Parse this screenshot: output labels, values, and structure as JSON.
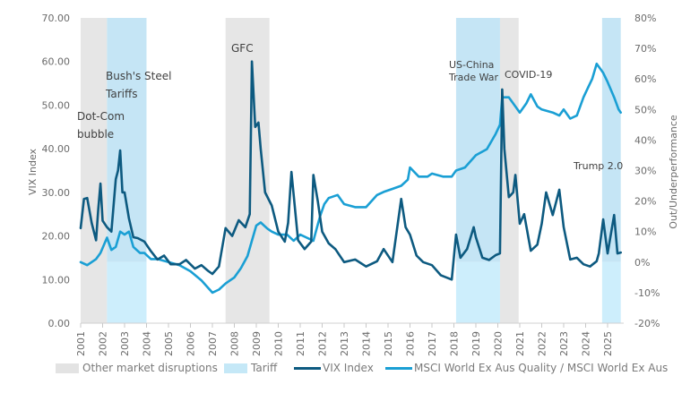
{
  "chart_data": {
    "type": "line",
    "title": "",
    "xlabel": "",
    "ylabel_left": "VIX Index",
    "ylabel_right": "Out/Underperformance",
    "ylim_left": [
      0,
      70
    ],
    "ylim_right": [
      -20,
      80
    ],
    "xlim": [
      2001.0,
      2025.6
    ],
    "left_ticks": [
      "0.00",
      "10.00",
      "20.00",
      "30.00",
      "40.00",
      "50.00",
      "60.00",
      "70.00"
    ],
    "left_tick_values": [
      0,
      10,
      20,
      30,
      40,
      50,
      60,
      70
    ],
    "right_ticks": [
      "-20%",
      "-10%",
      "0%",
      "10%",
      "20%",
      "30%",
      "40%",
      "50%",
      "60%",
      "70%",
      "80%"
    ],
    "right_tick_values": [
      -20,
      -10,
      0,
      10,
      20,
      30,
      40,
      50,
      60,
      70,
      80
    ],
    "x_ticks": [
      "2001",
      "2002",
      "2003",
      "2004",
      "2005",
      "2006",
      "2007",
      "2008",
      "2009",
      "2010",
      "2011",
      "2012",
      "2013",
      "2014",
      "2015",
      "2016",
      "2017",
      "2018",
      "2019",
      "2020",
      "2021",
      "2022",
      "2023",
      "2024",
      "2025"
    ],
    "grid": false,
    "legend_position": "bottom",
    "bands": [
      {
        "type": "other",
        "label": "Dot-Com bubble",
        "start": 2001.0,
        "end": 2002.2
      },
      {
        "type": "tariff",
        "label": "Bush's Steel Tariffs",
        "start": 2002.2,
        "end": 2004.0
      },
      {
        "type": "other",
        "label": "GFC",
        "start": 2007.6,
        "end": 2009.6
      },
      {
        "type": "tariff",
        "label": "US-China Trade War",
        "start": 2018.1,
        "end": 2020.1
      },
      {
        "type": "other",
        "label": "COVID-19",
        "start": 2020.1,
        "end": 2020.95
      },
      {
        "type": "tariff",
        "label": "Trump 2.0",
        "start": 2024.75,
        "end": 2025.6
      }
    ],
    "series": [
      {
        "name": "VIX Index",
        "axis": "left",
        "color": "#0d5a80",
        "x": [
          2001.0,
          2001.15,
          2001.3,
          2001.5,
          2001.7,
          2001.8,
          2001.9,
          2002.0,
          2002.2,
          2002.4,
          2002.6,
          2002.7,
          2002.8,
          2002.9,
          2003.0,
          2003.2,
          2003.4,
          2003.6,
          2003.9,
          2004.2,
          2004.5,
          2004.8,
          2005.1,
          2005.5,
          2005.8,
          2006.2,
          2006.5,
          2006.8,
          2007.0,
          2007.3,
          2007.6,
          2007.9,
          2008.2,
          2008.5,
          2008.7,
          2008.8,
          2008.95,
          2009.1,
          2009.2,
          2009.4,
          2009.7,
          2010.0,
          2010.3,
          2010.45,
          2010.6,
          2010.9,
          2011.2,
          2011.5,
          2011.6,
          2011.8,
          2012.0,
          2012.3,
          2012.6,
          2013.0,
          2013.5,
          2014.0,
          2014.5,
          2014.8,
          2015.2,
          2015.6,
          2015.8,
          2016.0,
          2016.3,
          2016.6,
          2017.0,
          2017.4,
          2017.9,
          2018.1,
          2018.3,
          2018.6,
          2018.9,
          2019.0,
          2019.3,
          2019.6,
          2019.9,
          2020.1,
          2020.2,
          2020.3,
          2020.5,
          2020.7,
          2020.8,
          2021.0,
          2021.2,
          2021.5,
          2021.8,
          2022.0,
          2022.2,
          2022.5,
          2022.8,
          2023.0,
          2023.3,
          2023.6,
          2023.9,
          2024.2,
          2024.5,
          2024.6,
          2024.8,
          2025.0,
          2025.3,
          2025.45,
          2025.6
        ],
        "y": [
          21.8,
          28.5,
          28.7,
          23,
          19,
          26,
          32,
          23.5,
          22,
          21,
          33,
          35,
          39.6,
          30,
          30,
          24,
          19.7,
          19.5,
          18.7,
          16.5,
          14.6,
          15.5,
          13.5,
          13.5,
          14.5,
          12.5,
          13.3,
          12,
          11.3,
          13,
          21.8,
          20,
          23.6,
          22,
          25,
          60,
          45,
          46,
          40,
          30,
          27,
          21,
          18.7,
          23,
          34.7,
          19,
          17,
          18.7,
          34,
          28,
          21,
          18.3,
          17,
          14,
          14.6,
          13,
          14.2,
          17,
          14,
          28.5,
          22,
          20.3,
          15.5,
          14,
          13.3,
          11,
          10,
          20.3,
          15,
          17,
          22,
          19.7,
          15,
          14.5,
          15.6,
          16,
          53.6,
          40,
          28.9,
          30,
          34,
          22.8,
          25,
          16.6,
          18,
          22.8,
          30,
          24.8,
          30.6,
          22,
          14.6,
          15,
          13.5,
          13,
          14.2,
          16,
          23.8,
          16,
          24.8,
          16,
          16.2
        ]
      },
      {
        "name": "MSCI World Ex Aus Quality / MSCI World Ex Aus",
        "axis": "right",
        "color": "#1a9fd4",
        "x": [
          2001.0,
          2001.3,
          2001.7,
          2001.9,
          2002.2,
          2002.4,
          2002.6,
          2002.8,
          2003.0,
          2003.2,
          2003.4,
          2003.7,
          2003.9,
          2004.2,
          2004.5,
          2005.0,
          2005.5,
          2006.0,
          2006.5,
          2007.0,
          2007.3,
          2007.6,
          2008.0,
          2008.3,
          2008.6,
          2008.8,
          2009.0,
          2009.2,
          2009.5,
          2009.7,
          2010.0,
          2010.4,
          2010.7,
          2011.0,
          2011.3,
          2011.6,
          2011.9,
          2012.1,
          2012.3,
          2012.7,
          2013.0,
          2013.5,
          2014.0,
          2014.5,
          2014.8,
          2015.2,
          2015.6,
          2015.9,
          2016.0,
          2016.4,
          2016.8,
          2017.0,
          2017.5,
          2017.9,
          2018.1,
          2018.5,
          2019.0,
          2019.5,
          2019.9,
          2020.1,
          2020.2,
          2020.5,
          2020.8,
          2021.0,
          2021.3,
          2021.5,
          2021.8,
          2022.0,
          2022.5,
          2022.8,
          2023.0,
          2023.3,
          2023.6,
          2023.9,
          2024.1,
          2024.3,
          2024.5,
          2024.7,
          2024.8,
          2025.0,
          2025.3,
          2025.5,
          2025.6
        ],
        "y": [
          0,
          -1,
          1,
          3,
          8,
          4,
          5,
          10,
          9,
          10,
          5,
          3,
          3,
          1,
          1,
          0,
          -1,
          -3,
          -6,
          -10,
          -9,
          -7,
          -5,
          -2,
          2,
          7,
          12,
          13,
          11,
          10,
          9,
          9,
          7,
          9,
          8,
          7,
          15,
          19,
          21,
          22,
          19,
          18,
          18,
          22,
          23,
          24,
          25,
          27,
          31,
          28,
          28,
          29,
          28,
          28,
          30,
          31,
          35,
          37,
          42,
          45,
          54,
          54,
          51,
          49,
          52,
          55,
          51,
          50,
          49,
          48,
          50,
          47,
          48,
          54,
          57,
          60,
          65,
          63,
          62,
          59,
          54,
          50,
          49
        ]
      }
    ]
  },
  "annotations": {
    "dotcom": [
      "Dot-Com",
      "bubble"
    ],
    "bush": [
      "Bush's Steel",
      "Tariffs"
    ],
    "gfc": [
      "GFC"
    ],
    "uschina": [
      "US-China",
      "Trade War"
    ],
    "covid": [
      "COVID-19"
    ],
    "trump": [
      "Trump 2.0"
    ]
  },
  "legend": {
    "other": "Other market disruptions",
    "tariff": "Tariff",
    "vix": "VIX Index",
    "msci": "MSCI World Ex Aus Quality / MSCI World Ex Aus"
  },
  "colors": {
    "other_band": "#e6e6e6",
    "tariff_band": "#c5e5f5",
    "tariff_band_light": "#cdeefc",
    "vix": "#0d5a80",
    "msci": "#1a9fd4"
  }
}
